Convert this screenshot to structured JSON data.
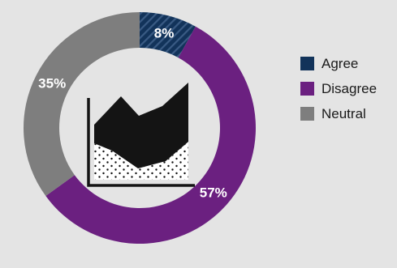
{
  "chart_data": {
    "type": "pie",
    "donut": true,
    "categories": [
      "Agree",
      "Disagree",
      "Neutral"
    ],
    "values": [
      8,
      57,
      35
    ],
    "labels": [
      "8%",
      "57%",
      "35%"
    ],
    "colors": [
      "#12335a",
      "#6b2080",
      "#7e7e7e"
    ],
    "agree_pattern": "diagonal-stripes",
    "center_icon": "area-chart-icon",
    "legend_position": "right"
  },
  "legend": {
    "items": [
      {
        "label": "Agree",
        "color": "#12335a"
      },
      {
        "label": "Disagree",
        "color": "#6b2080"
      },
      {
        "label": "Neutral",
        "color": "#7e7e7e"
      }
    ]
  }
}
